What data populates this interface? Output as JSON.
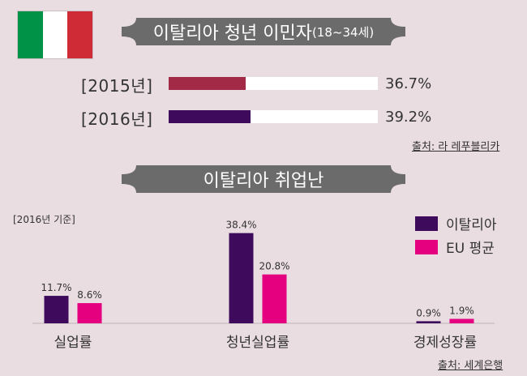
{
  "colors": {
    "background": "#e9dde1",
    "banner": "#6b6b6b",
    "italy": "#3e0a5c",
    "eu": "#e4007f",
    "bar2015": "#a32a47",
    "bar2016": "#3e0a5c",
    "flag_green": "#009246",
    "flag_white": "#ffffff",
    "flag_red": "#ce2b37"
  },
  "section1": {
    "title": "이탈리아 청년 이민자",
    "title_suffix": "(18~34세)",
    "bars": [
      {
        "year": "[2015년]",
        "value": 36.7,
        "value_label": "36.7%",
        "color": "#a32a47"
      },
      {
        "year": "[2016년]",
        "value": 39.2,
        "value_label": "39.2%",
        "color": "#3e0a5c"
      }
    ],
    "source": "출처: 라 레푸블리카"
  },
  "section2": {
    "title": "이탈리아 취업난",
    "note": "[2016년 기준]",
    "source": "출처: 세계은행"
  },
  "chart_data": {
    "type": "bar",
    "categories": [
      "실업률",
      "청년실업률",
      "경제성장률"
    ],
    "series": [
      {
        "name": "이탈리아",
        "values": [
          11.7,
          38.4,
          0.9
        ],
        "labels": [
          "11.7%",
          "38.4%",
          "0.9%"
        ],
        "color": "#3e0a5c"
      },
      {
        "name": "EU 평균",
        "values": [
          8.6,
          20.8,
          1.9
        ],
        "labels": [
          "8.6%",
          "20.8%",
          "1.9%"
        ],
        "color": "#e4007f"
      }
    ],
    "ylim": [
      0,
      40
    ],
    "grid": false,
    "legend_position": "top-right"
  }
}
